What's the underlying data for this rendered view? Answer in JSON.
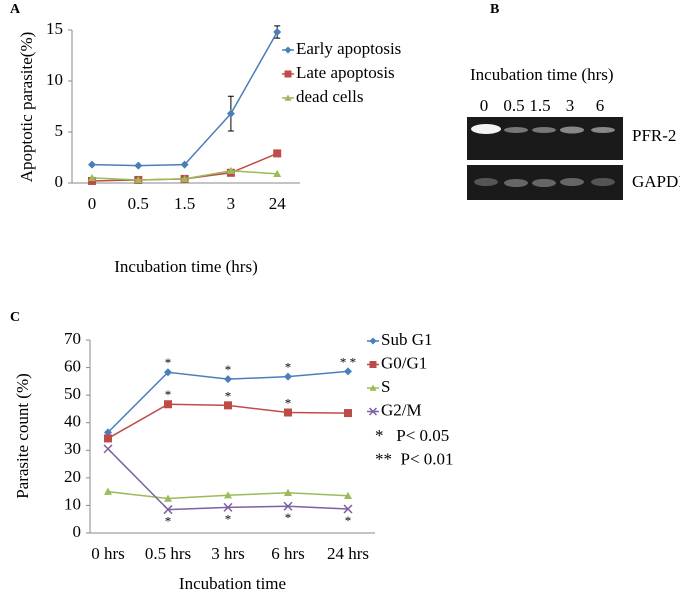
{
  "chart_data": [
    {
      "type": "line",
      "panel": "A",
      "y_label": "Apoptotic parasite(%)",
      "x_label": "Incubation time (hrs)",
      "categories": [
        "0",
        "0.5",
        "1.5",
        "3",
        "24"
      ],
      "ylim": [
        0,
        15
      ],
      "yticks": [
        0,
        5,
        10,
        15
      ],
      "grid": false,
      "series": [
        {
          "name": "Early apoptosis",
          "color": "#4a7ebb",
          "marker": "diamond",
          "values": [
            1.8,
            1.7,
            1.8,
            6.8,
            14.8
          ],
          "errors": [
            null,
            null,
            null,
            1.7,
            0.6
          ]
        },
        {
          "name": "Late apoptosis",
          "color": "#be4b48",
          "marker": "square",
          "values": [
            0.2,
            0.3,
            0.4,
            1.0,
            2.9
          ]
        },
        {
          "name": "dead cells",
          "color": "#9bbb59",
          "marker": "triangle",
          "values": [
            0.5,
            0.3,
            0.4,
            1.2,
            0.9
          ]
        }
      ]
    },
    {
      "type": "line",
      "panel": "C",
      "y_label": "Parasite count (%)",
      "x_label": "Incubation time",
      "categories": [
        "0 hrs",
        "0.5 hrs",
        "3 hrs",
        "6 hrs",
        "24 hrs"
      ],
      "ylim": [
        0,
        70
      ],
      "yticks": [
        0,
        10,
        20,
        30,
        40,
        50,
        60,
        70
      ],
      "grid": false,
      "series": [
        {
          "name": "Sub G1",
          "color": "#4a7ebb",
          "marker": "diamond",
          "values": [
            36.5,
            58.3,
            55.8,
            56.7,
            58.6
          ],
          "significance": [
            null,
            "*",
            "*",
            "*",
            "* *"
          ]
        },
        {
          "name": "G0/G1",
          "color": "#be4b48",
          "marker": "square",
          "values": [
            34.3,
            46.7,
            46.3,
            43.7,
            43.5
          ],
          "significance": [
            null,
            "*",
            "*",
            "*",
            null
          ]
        },
        {
          "name": "S",
          "color": "#9bbb59",
          "marker": "triangle",
          "values": [
            15,
            12.5,
            13.7,
            14.6,
            13.5
          ]
        },
        {
          "name": "G2/M",
          "color": "#7d60a0",
          "marker": "x",
          "values": [
            30.5,
            8.5,
            9.3,
            9.7,
            8.7
          ],
          "significance": [
            null,
            "*",
            "*",
            "*",
            "*"
          ],
          "significance_position": "below"
        }
      ],
      "notes": [
        "*   P< 0.05",
        "**  P< 0.01"
      ]
    }
  ],
  "blot": {
    "panel": "B",
    "title": "Incubation time (hrs)",
    "lanes": [
      "0",
      "0.5",
      "1.5",
      "3",
      "6"
    ],
    "bands": [
      "PFR-2",
      "GAPDH"
    ]
  }
}
